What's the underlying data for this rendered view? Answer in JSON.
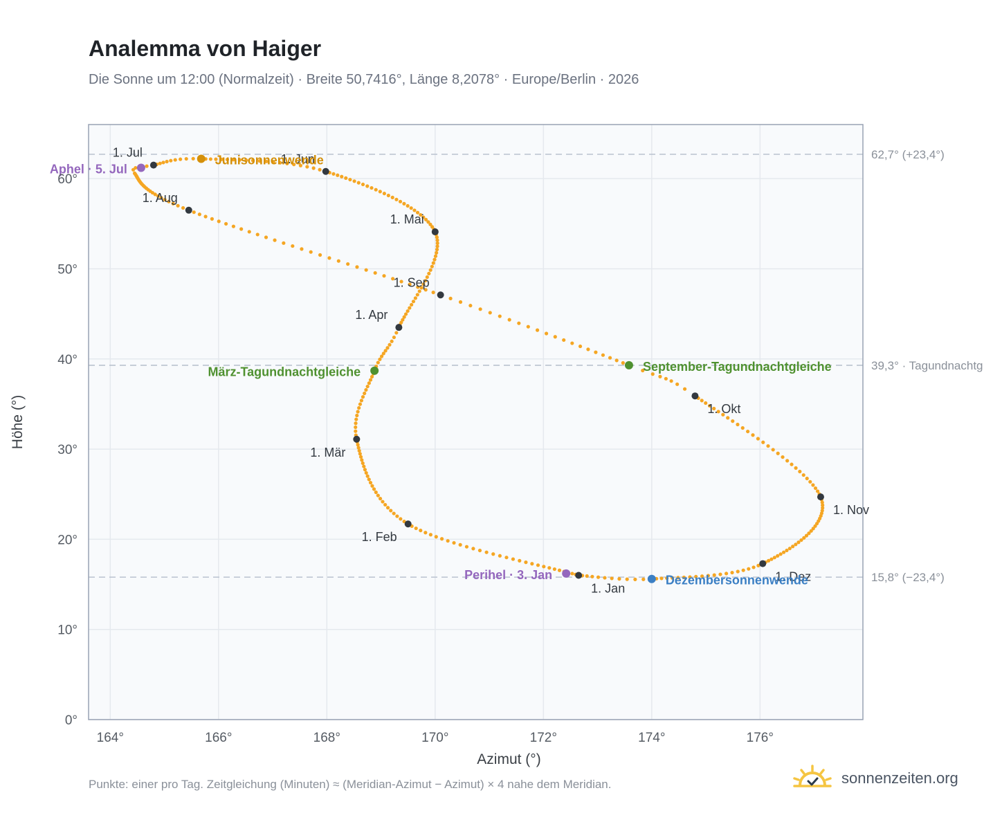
{
  "title": "Analemma von Haiger",
  "subtitle": "Die Sonne um 12:00 (Normalzeit) · Breite 50,7416°, Länge 8,2078° · Europe/Berlin · 2026",
  "footnote": "Punkte: einer pro Tag. Zeitgleichung (Minuten) ≈ (Meridian-Azimut − Azimut) × 4 nahe dem Meridian.",
  "brand": {
    "name": "sonnenzeiten.org",
    "icon": "sun-check-icon"
  },
  "colors": {
    "curve": "#f5a623",
    "month_marker": "#333940",
    "june_solstice": "#d4900a",
    "december_solstice": "#3b7fc4",
    "equinox": "#4f9130",
    "perihelion_aphelion": "#9467bd",
    "reference_line": "#b9c2cf",
    "plot_background": "#f8fafc",
    "grid": "#e5e9ee",
    "brand_sun": "#f5c542"
  },
  "chart_data": {
    "type": "scatter",
    "xlabel": "Azimut (°)",
    "ylabel": "Höhe (°)",
    "xlim": [
      163.6,
      177.9
    ],
    "ylim": [
      0,
      66
    ],
    "xticks": [
      164,
      166,
      168,
      170,
      172,
      174,
      176
    ],
    "xtick_labels": [
      "164°",
      "166°",
      "168°",
      "170°",
      "172°",
      "174°",
      "176°"
    ],
    "yticks": [
      0,
      10,
      20,
      30,
      40,
      50,
      60
    ],
    "ytick_labels": [
      "0°",
      "10°",
      "20°",
      "30°",
      "40°",
      "50°",
      "60°"
    ],
    "grid": true,
    "series_note": "one point per day of 2026, sun position at 12:00 standard time",
    "curve_anchors": [
      {
        "day": 0,
        "az": 172.65,
        "alt": 16.0
      },
      {
        "day": 31,
        "az": 169.5,
        "alt": 21.7
      },
      {
        "day": 59,
        "az": 168.55,
        "alt": 31.1
      },
      {
        "day": 78,
        "az": 168.88,
        "alt": 38.7
      },
      {
        "day": 90,
        "az": 169.33,
        "alt": 43.5
      },
      {
        "day": 120,
        "az": 170.0,
        "alt": 54.1
      },
      {
        "day": 151,
        "az": 167.98,
        "alt": 60.8
      },
      {
        "day": 171,
        "az": 165.68,
        "alt": 62.2
      },
      {
        "day": 181,
        "az": 164.8,
        "alt": 61.5
      },
      {
        "day": 186,
        "az": 164.45,
        "alt": 60.6
      },
      {
        "day": 212,
        "az": 165.45,
        "alt": 56.5
      },
      {
        "day": 243,
        "az": 170.1,
        "alt": 47.1
      },
      {
        "day": 265,
        "az": 173.58,
        "alt": 39.3
      },
      {
        "day": 273,
        "az": 174.8,
        "alt": 35.9
      },
      {
        "day": 304,
        "az": 177.12,
        "alt": 24.7
      },
      {
        "day": 334,
        "az": 176.05,
        "alt": 17.3
      },
      {
        "day": 354,
        "az": 174.0,
        "alt": 15.6
      },
      {
        "day": 365,
        "az": 172.65,
        "alt": 16.0
      }
    ],
    "month_markers": [
      {
        "label": "1. Jan",
        "az": 172.65,
        "alt": 16.0,
        "label_pos": "below-right"
      },
      {
        "label": "1. Feb",
        "az": 169.5,
        "alt": 21.7,
        "label_pos": "below-left"
      },
      {
        "label": "1. Mär",
        "az": 168.55,
        "alt": 31.1,
        "label_pos": "below-left"
      },
      {
        "label": "1. Apr",
        "az": 169.33,
        "alt": 43.5,
        "label_pos": "above-left"
      },
      {
        "label": "1. Mai",
        "az": 170.0,
        "alt": 54.1,
        "label_pos": "above-left"
      },
      {
        "label": "1. Jun",
        "az": 167.98,
        "alt": 60.8,
        "label_pos": "above-left"
      },
      {
        "label": "1. Jul",
        "az": 164.8,
        "alt": 61.5,
        "label_pos": "above-left"
      },
      {
        "label": "1. Aug",
        "az": 165.45,
        "alt": 56.5,
        "label_pos": "above-left"
      },
      {
        "label": "1. Sep",
        "az": 170.1,
        "alt": 47.1,
        "label_pos": "above-left"
      },
      {
        "label": "1. Okt",
        "az": 174.8,
        "alt": 35.9,
        "label_pos": "below-right"
      },
      {
        "label": "1. Nov",
        "az": 177.12,
        "alt": 24.7,
        "label_pos": "below-right"
      },
      {
        "label": "1. Dez",
        "az": 176.05,
        "alt": 17.3,
        "label_pos": "below-right"
      }
    ],
    "special_points": [
      {
        "label": "Junisonnenwende",
        "az": 165.68,
        "alt": 62.2,
        "color_key": "june_solstice",
        "label_side": "right"
      },
      {
        "label": "Dezembersonnenwende",
        "az": 174.0,
        "alt": 15.6,
        "color_key": "december_solstice",
        "label_side": "right"
      },
      {
        "label": "März-Tagundnachtgleiche",
        "az": 168.88,
        "alt": 38.7,
        "color_key": "equinox",
        "label_side": "left"
      },
      {
        "label": "September-Tagundnachtgleiche",
        "az": 173.58,
        "alt": 39.3,
        "color_key": "equinox",
        "label_side": "right"
      },
      {
        "label": "Aphel · 5. Jul",
        "az": 164.57,
        "alt": 61.2,
        "color_key": "perihelion_aphelion",
        "label_side": "left"
      },
      {
        "label": "Perihel · 3. Jan",
        "az": 172.42,
        "alt": 16.2,
        "color_key": "perihelion_aphelion",
        "label_side": "left"
      }
    ],
    "reference_lines": [
      {
        "alt": 62.7,
        "label": "62,7° (+23,4°)"
      },
      {
        "alt": 39.3,
        "label": "39,3° · Tagundnachtg"
      },
      {
        "alt": 15.8,
        "label": "15,8° (−23,4°)"
      }
    ]
  }
}
